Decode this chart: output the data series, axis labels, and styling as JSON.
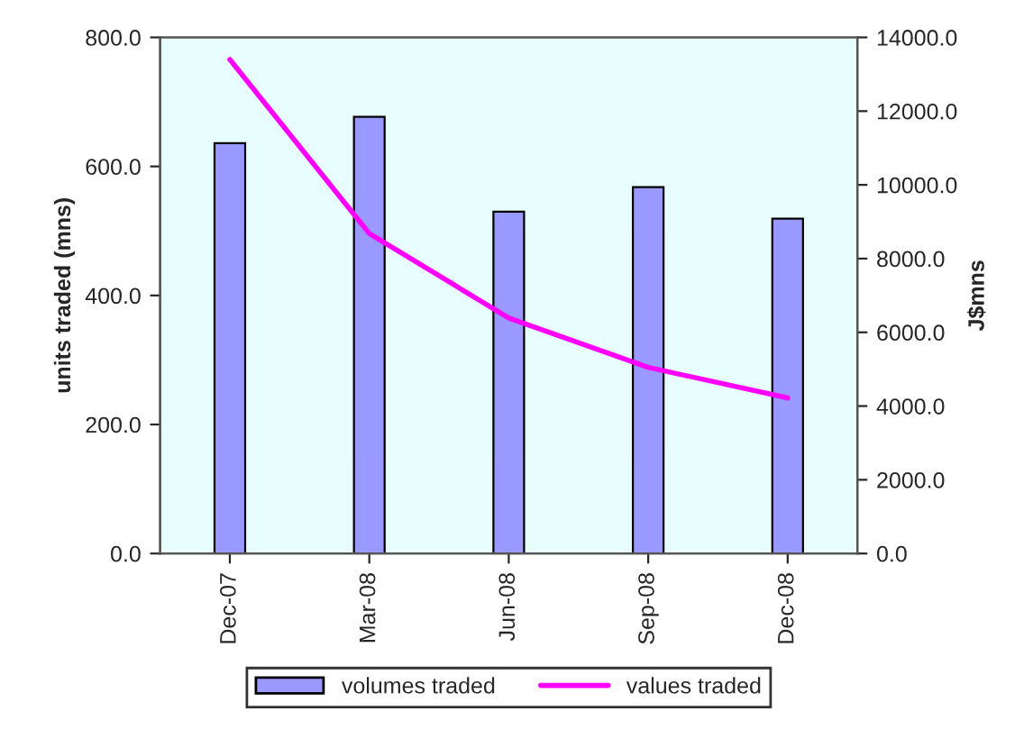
{
  "chart_data": {
    "type": "bar",
    "categories": [
      "Dec-07",
      "Mar-08",
      "Jun-08",
      "Sep-08",
      "Dec-08"
    ],
    "series": [
      {
        "name": "volumes traded",
        "color": "#9999ff",
        "values": [
          636,
          677,
          530,
          568,
          519
        ]
      },
      {
        "name": "values traded",
        "type": "line",
        "axis": "y2",
        "color": "#ff00ff",
        "values": [
          13400,
          8680,
          6390,
          5050,
          4220
        ]
      }
    ],
    "ylabel": "units traded (mns)",
    "y2label": "J$mns",
    "ylim": [
      0,
      800
    ],
    "yticks": [
      {
        "value": 0,
        "label": "0.0"
      },
      {
        "value": 200,
        "label": "200.0"
      },
      {
        "value": 400,
        "label": "400.0"
      },
      {
        "value": 600,
        "label": "600.0"
      },
      {
        "value": 800,
        "label": "800.0"
      }
    ],
    "y2lim": [
      0,
      14000
    ],
    "y2ticks": [
      {
        "value": 0,
        "label": "0.0"
      },
      {
        "value": 2000,
        "label": "2000.0"
      },
      {
        "value": 4000,
        "label": "4000.0"
      },
      {
        "value": 6000,
        "label": "6000.0"
      },
      {
        "value": 8000,
        "label": "8000.0"
      },
      {
        "value": 10000,
        "label": "10000.0"
      },
      {
        "value": 12000,
        "label": "12000.0"
      },
      {
        "value": 14000,
        "label": "14000.0"
      }
    ],
    "grid": false,
    "legend": "bottom",
    "marker": "none",
    "line_style": "solid"
  }
}
